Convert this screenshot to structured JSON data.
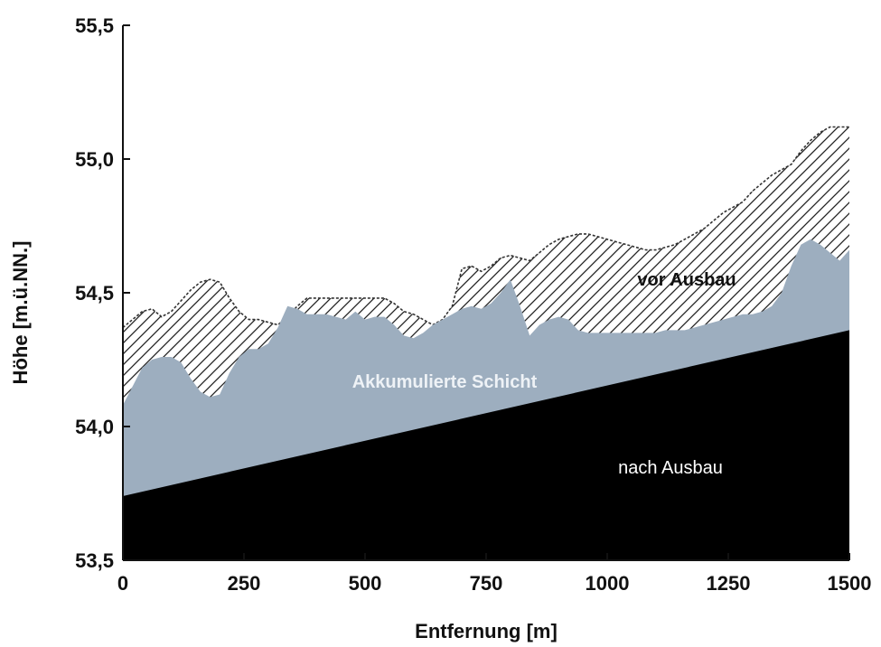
{
  "chart_data": {
    "type": "area",
    "xlabel": "Entfernung [m]",
    "ylabel": "Höhe [m.ü.NN.]",
    "xlim": [
      0,
      1500
    ],
    "ylim": [
      53.5,
      55.5
    ],
    "x_ticks": [
      0,
      250,
      500,
      750,
      1000,
      1250,
      1500
    ],
    "x_tick_labels": [
      "0",
      "250",
      "500",
      "750",
      "1000",
      "1250",
      "1500"
    ],
    "y_ticks": [
      53.5,
      54.0,
      54.5,
      55.0,
      55.5
    ],
    "y_tick_labels": [
      "53,5",
      "54,0",
      "54,5",
      "55,0",
      "55,5"
    ],
    "grid": false,
    "colors": {
      "nach_ausbau": "#000000",
      "akkumulierte_schicht": "#9daebf",
      "vor_ausbau_hatch": "#222222"
    },
    "annotations": {
      "vor_ausbau": "vor Ausbau",
      "akkumulierte_schicht": "Akkumulierte Schicht",
      "nach_ausbau": "nach Ausbau"
    },
    "series": [
      {
        "key": "vor_ausbau",
        "fill": "hatched",
        "x": [
          0,
          20,
          40,
          60,
          80,
          100,
          120,
          140,
          160,
          180,
          200,
          220,
          240,
          260,
          280,
          300,
          320,
          340,
          360,
          380,
          400,
          420,
          440,
          460,
          480,
          500,
          520,
          540,
          560,
          580,
          600,
          620,
          640,
          660,
          680,
          700,
          720,
          740,
          760,
          780,
          800,
          820,
          840,
          860,
          880,
          900,
          920,
          940,
          960,
          980,
          1000,
          1020,
          1040,
          1060,
          1080,
          1100,
          1120,
          1140,
          1160,
          1180,
          1200,
          1220,
          1240,
          1260,
          1280,
          1300,
          1320,
          1340,
          1360,
          1380,
          1400,
          1420,
          1440,
          1460,
          1480,
          1500
        ],
        "y": [
          54.37,
          54.4,
          54.43,
          54.44,
          54.41,
          54.43,
          54.47,
          54.51,
          54.54,
          54.55,
          54.54,
          54.48,
          54.43,
          54.4,
          54.4,
          54.39,
          54.38,
          54.41,
          54.45,
          54.48,
          54.48,
          54.48,
          54.48,
          54.48,
          54.48,
          54.48,
          54.48,
          54.48,
          54.46,
          54.43,
          54.42,
          54.4,
          54.38,
          54.4,
          54.45,
          54.59,
          54.6,
          54.58,
          54.6,
          54.63,
          54.64,
          54.63,
          54.62,
          54.65,
          54.68,
          54.7,
          54.71,
          54.72,
          54.72,
          54.71,
          54.7,
          54.69,
          54.68,
          54.67,
          54.66,
          54.66,
          54.67,
          54.68,
          54.7,
          54.72,
          54.74,
          54.77,
          54.8,
          54.82,
          54.84,
          54.88,
          54.91,
          54.94,
          54.96,
          54.98,
          55.03,
          55.07,
          55.1,
          55.12,
          55.12,
          55.12
        ]
      },
      {
        "key": "akkumulierte_schicht",
        "fill": "solid",
        "x": [
          0,
          20,
          40,
          60,
          80,
          100,
          120,
          140,
          160,
          180,
          200,
          220,
          240,
          260,
          280,
          300,
          320,
          340,
          360,
          380,
          400,
          420,
          440,
          460,
          480,
          500,
          520,
          540,
          560,
          580,
          600,
          620,
          640,
          660,
          680,
          700,
          720,
          740,
          760,
          780,
          800,
          820,
          840,
          860,
          880,
          900,
          920,
          940,
          960,
          980,
          1000,
          1020,
          1040,
          1060,
          1080,
          1100,
          1120,
          1140,
          1160,
          1180,
          1200,
          1220,
          1240,
          1260,
          1280,
          1300,
          1320,
          1340,
          1360,
          1380,
          1400,
          1420,
          1440,
          1460,
          1480,
          1500
        ],
        "y": [
          54.08,
          54.15,
          54.22,
          54.25,
          54.26,
          54.26,
          54.24,
          54.18,
          54.13,
          54.11,
          54.12,
          54.2,
          54.26,
          54.29,
          54.29,
          54.31,
          54.37,
          54.45,
          54.44,
          54.42,
          54.42,
          54.42,
          54.41,
          54.4,
          54.43,
          54.4,
          54.41,
          54.41,
          54.38,
          54.34,
          54.33,
          54.35,
          54.38,
          54.4,
          54.42,
          54.44,
          54.45,
          54.44,
          54.46,
          54.5,
          54.55,
          54.45,
          54.34,
          54.38,
          54.4,
          54.41,
          54.4,
          54.36,
          54.35,
          54.35,
          54.35,
          54.35,
          54.35,
          54.35,
          54.35,
          54.35,
          54.36,
          54.36,
          54.36,
          54.37,
          54.38,
          54.39,
          54.4,
          54.41,
          54.42,
          54.42,
          54.43,
          54.45,
          54.5,
          54.6,
          54.68,
          54.7,
          54.68,
          54.65,
          54.62,
          54.66
        ]
      },
      {
        "key": "nach_ausbau",
        "fill": "solid",
        "x": [
          0,
          1500
        ],
        "y": [
          53.74,
          54.36
        ]
      }
    ]
  }
}
